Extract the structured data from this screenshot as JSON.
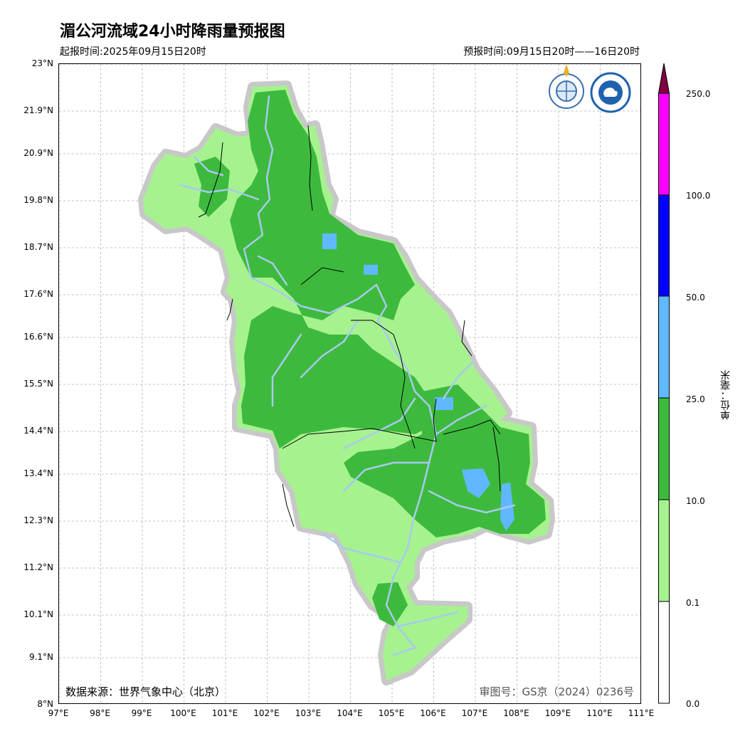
{
  "header": {
    "title": "湄公河流域24小时降雨量预报图",
    "issue_time": "起报时间:2025年09月15日20时",
    "forecast_time": "预报时间:09月15日20时——16日20时"
  },
  "map": {
    "lat_labels": [
      "23°N",
      "21.9°N",
      "20.9°N",
      "19.8°N",
      "18.7°N",
      "17.6°N",
      "16.6°N",
      "15.5°N",
      "14.4°N",
      "13.4°N",
      "12.3°N",
      "11.2°N",
      "10.1°N",
      "9.1°N",
      "8°N"
    ],
    "lat_values": [
      23,
      21.9,
      20.9,
      19.8,
      18.7,
      17.6,
      16.6,
      15.5,
      14.4,
      13.4,
      12.3,
      11.2,
      10.1,
      9.1,
      8
    ],
    "lon_labels": [
      "97°E",
      "98°E",
      "99°E",
      "100°E",
      "101°E",
      "102°E",
      "103°E",
      "104°E",
      "105°E",
      "106°E",
      "107°E",
      "108°E",
      "109°E",
      "110°E",
      "111°E"
    ],
    "lon_values": [
      97,
      98,
      99,
      100,
      101,
      102,
      103,
      104,
      105,
      106,
      107,
      108,
      109,
      110,
      111
    ],
    "lon_range": [
      97,
      111
    ],
    "lat_range": [
      8,
      23
    ],
    "grid": true
  },
  "footer": {
    "source": "数据来源：世界气象中心（北京）",
    "review_no": "审图号：GS京（2024）0236号"
  },
  "legend": {
    "unit": "单位：毫米",
    "ticks": [
      "250.0",
      "100.0",
      "50.0",
      "25.0",
      "10.0",
      "0.1",
      "0.0"
    ],
    "colors": [
      "#ffffff",
      "#a6f28f",
      "#3dba3d",
      "#61b8ff",
      "#0000ff",
      "#fa00fa",
      "#800040"
    ]
  }
}
